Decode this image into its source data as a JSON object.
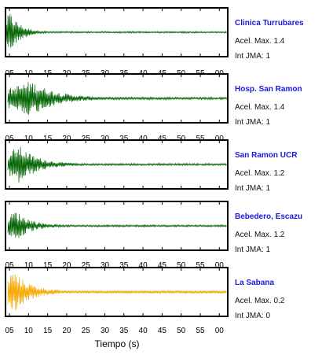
{
  "chart_data": {
    "type": "line",
    "xlabel": "Tiempo (s)",
    "x_ticks": [
      "05",
      "10",
      "15",
      "20",
      "25",
      "30",
      "35",
      "40",
      "45",
      "50",
      "55",
      "00"
    ],
    "amax_label": "Acel. Max.",
    "jma_label": "Int JMA:",
    "stations": [
      {
        "name": "Clinica Turrubares",
        "acel_max": "1.4",
        "int_jma": "1",
        "color": "#006400"
      },
      {
        "name": "Hosp. San Ramon",
        "acel_max": "1.4",
        "int_jma": "1",
        "color": "#006400"
      },
      {
        "name": "San Ramon UCR",
        "acel_max": "1.2",
        "int_jma": "1",
        "color": "#006400"
      },
      {
        "name": "Bebedero, Escazu",
        "acel_max": "1.2",
        "int_jma": "1",
        "color": "#006400"
      },
      {
        "name": "La Sabana",
        "acel_max": "0.2",
        "int_jma": "0",
        "color": "#f5a800"
      }
    ]
  }
}
